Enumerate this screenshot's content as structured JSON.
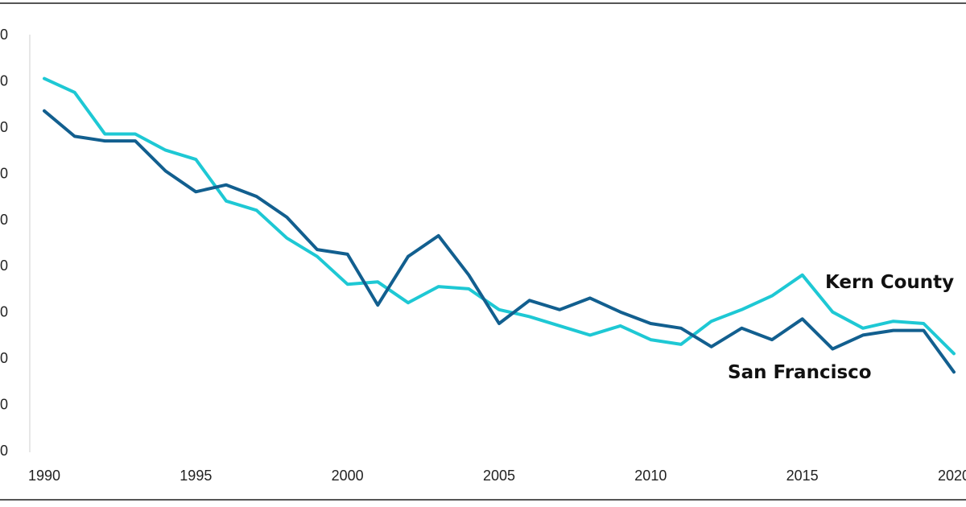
{
  "chart_data": {
    "type": "line",
    "title": "",
    "xlabel": "",
    "ylabel": "",
    "x": [
      1990,
      1991,
      1992,
      1993,
      1994,
      1995,
      1996,
      1997,
      1998,
      1999,
      2000,
      2001,
      2002,
      2003,
      2004,
      2005,
      2006,
      2007,
      2008,
      2009,
      2010,
      2011,
      2012,
      2013,
      2014,
      2015,
      2016,
      2017,
      2018,
      2019,
      2020
    ],
    "xlim": [
      1990,
      2020
    ],
    "ylim": [
      0,
      9
    ],
    "x_ticks": [
      1990,
      1995,
      2000,
      2005,
      2010,
      2015,
      2020
    ],
    "x_tick_labels": [
      "1990",
      "1995",
      "2000",
      "2005",
      "2010",
      "2015",
      "2020"
    ],
    "y_tick_labels": [
      "0",
      "0",
      "0",
      "0",
      "0",
      "0",
      "0",
      "0",
      "0",
      "0"
    ],
    "grid": false,
    "legend": "none (direct labels)",
    "series": [
      {
        "name": "Kern County",
        "color": "#1ec8d4",
        "values": [
          8.05,
          7.75,
          6.85,
          6.85,
          6.5,
          6.3,
          5.4,
          5.2,
          4.6,
          4.2,
          3.6,
          3.65,
          3.2,
          3.55,
          3.5,
          3.05,
          2.9,
          2.7,
          2.5,
          2.7,
          2.4,
          2.3,
          2.8,
          3.05,
          3.35,
          3.8,
          3.0,
          2.65,
          2.8,
          2.75,
          2.1
        ]
      },
      {
        "name": "San Francisco",
        "color": "#125f8f",
        "values": [
          7.35,
          6.8,
          6.7,
          6.7,
          6.05,
          5.6,
          5.75,
          5.5,
          5.05,
          4.35,
          4.25,
          3.15,
          4.2,
          4.65,
          3.8,
          2.75,
          3.25,
          3.05,
          3.3,
          3.0,
          2.75,
          2.65,
          2.25,
          2.65,
          2.4,
          2.85,
          2.2,
          2.5,
          2.6,
          2.6,
          1.7
        ]
      }
    ]
  }
}
